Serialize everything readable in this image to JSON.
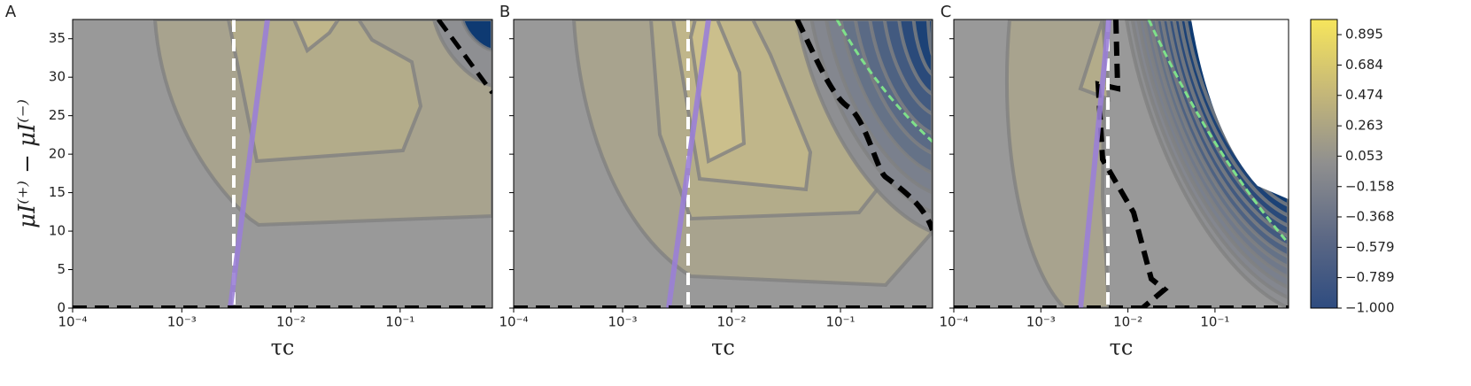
{
  "chart_data": [
    {
      "type": "contour",
      "panel": "A",
      "xlabel": "τc",
      "ylabel": "μI⁽⁺⁾ − μI⁽⁻⁾",
      "log_x": true,
      "xlim": [
        0.0001,
        0.7
      ],
      "xticks": [
        {
          "value": 0.0001,
          "label": "10⁻⁴"
        },
        {
          "value": 0.001,
          "label": "10⁻³"
        },
        {
          "value": 0.01,
          "label": "10⁻²"
        },
        {
          "value": 0.1,
          "label": "10⁻¹"
        }
      ],
      "ylim": [
        0,
        37.5
      ],
      "yticks": [
        0,
        5,
        10,
        15,
        20,
        25,
        30,
        35
      ],
      "ytick_labels": true
    },
    {
      "type": "contour",
      "panel": "B",
      "xlabel": "τc",
      "log_x": true,
      "xlim": [
        0.0001,
        0.7
      ],
      "xticks": [
        {
          "value": 0.0001,
          "label": "10⁻⁴"
        },
        {
          "value": 0.001,
          "label": "10⁻³"
        },
        {
          "value": 0.01,
          "label": "10⁻²"
        },
        {
          "value": 0.1,
          "label": "10⁻¹"
        }
      ],
      "ylim": [
        0,
        37.5
      ],
      "yticks": [
        0,
        5,
        10,
        15,
        20,
        25,
        30,
        35
      ],
      "ytick_labels": false
    },
    {
      "type": "contour",
      "panel": "C",
      "xlabel": "τc",
      "log_x": true,
      "xlim": [
        0.0001,
        0.7
      ],
      "xticks": [
        {
          "value": 0.0001,
          "label": "10⁻⁴"
        },
        {
          "value": 0.001,
          "label": "10⁻³"
        },
        {
          "value": 0.01,
          "label": "10⁻²"
        },
        {
          "value": 0.1,
          "label": "10⁻¹"
        }
      ],
      "ylim": [
        0,
        37.5
      ],
      "yticks": [
        0,
        5,
        10,
        15,
        20,
        25,
        30,
        35
      ],
      "ytick_labels": false
    }
  ],
  "colorbar": {
    "lim": [
      -1,
      1
    ],
    "ticks": [
      {
        "value": -1,
        "label": "−1.000"
      },
      {
        "value": -0.789,
        "label": "−0.789"
      },
      {
        "value": -0.579,
        "label": "−0.579"
      },
      {
        "value": -0.368,
        "label": "−0.368"
      },
      {
        "value": -0.158,
        "label": "−0.158"
      },
      0.053,
      0.263,
      0.474,
      0.684,
      0.895
    ],
    "colors": [
      "#2f4c80",
      "#5d6985",
      "#8f8f8f",
      "#c6b878",
      "#f6e55c"
    ]
  }
}
